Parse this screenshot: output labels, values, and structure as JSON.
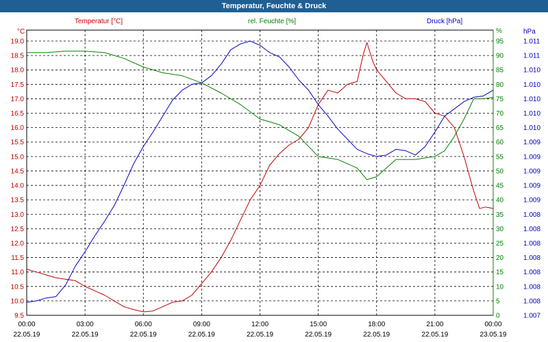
{
  "window": {
    "title": "Temperatur, Feuchte & Druck"
  },
  "chart_data": {
    "type": "line",
    "title": "Temperatur, Feuchte & Druck",
    "legend": {
      "temperature": "Temperatur [°C]",
      "humidity": "rel. Feuchte [%]",
      "pressure": "Druck [hPa]"
    },
    "colors": {
      "temperature": "#c00000",
      "humidity": "#008000",
      "pressure": "#0000c0",
      "grid": "#000000",
      "title_bar": "#1f5f93"
    },
    "axes": {
      "left": {
        "unit": "°C",
        "min": 9.5,
        "max": 19.0,
        "ticks": [
          "9.5",
          "10.0",
          "10.5",
          "11.0",
          "11.5",
          "12.0",
          "12.5",
          "13.0",
          "13.5",
          "14.0",
          "14.5",
          "15.0",
          "15.5",
          "16.0",
          "16.5",
          "17.0",
          "17.5",
          "18.0",
          "18.5",
          "19.0"
        ]
      },
      "right1": {
        "unit": "%",
        "min": 0,
        "max": 95,
        "ticks": [
          "0",
          "5",
          "10",
          "15",
          "20",
          "25",
          "30",
          "35",
          "40",
          "45",
          "50",
          "55",
          "60",
          "65",
          "70",
          "75",
          "80",
          "85",
          "90",
          "95"
        ]
      },
      "right2": {
        "unit": "hPa",
        "ticks": [
          "1.007",
          "1.008",
          "1.008",
          "1.008",
          "1.008",
          "1.008",
          "1.008",
          "1.008",
          "1.009",
          "1.009",
          "1.009",
          "1.009",
          "1.009",
          "1.010",
          "1.010",
          "1.010",
          "1.010",
          "1.010",
          "1.011",
          "1.011"
        ]
      },
      "x": {
        "ticks": [
          {
            "time": "00:00",
            "date": "22.05.19"
          },
          {
            "time": "03:00",
            "date": "22.05.19"
          },
          {
            "time": "06:00",
            "date": "22.05.19"
          },
          {
            "time": "09:00",
            "date": "22.05.19"
          },
          {
            "time": "12:00",
            "date": "22.05.19"
          },
          {
            "time": "15:00",
            "date": "22.05.19"
          },
          {
            "time": "18:00",
            "date": "22.05.19"
          },
          {
            "time": "21:00",
            "date": "22.05.19"
          },
          {
            "time": "00:00",
            "date": "23.05.19"
          }
        ],
        "hours_range": [
          0,
          24
        ]
      }
    },
    "series": [
      {
        "name": "Temperatur",
        "axis": "left",
        "color": "#c00000",
        "points": [
          [
            0,
            11.1
          ],
          [
            0.5,
            11.0
          ],
          [
            1,
            10.9
          ],
          [
            1.5,
            10.8
          ],
          [
            2,
            10.75
          ],
          [
            2.5,
            10.7
          ],
          [
            3,
            10.5
          ],
          [
            3.5,
            10.35
          ],
          [
            4,
            10.2
          ],
          [
            4.5,
            10.0
          ],
          [
            5,
            9.8
          ],
          [
            5.5,
            9.7
          ],
          [
            6,
            9.62
          ],
          [
            6.5,
            9.65
          ],
          [
            7,
            9.8
          ],
          [
            7.5,
            9.95
          ],
          [
            8,
            10.0
          ],
          [
            8.5,
            10.2
          ],
          [
            9,
            10.6
          ],
          [
            9.5,
            11.0
          ],
          [
            10,
            11.5
          ],
          [
            10.5,
            12.1
          ],
          [
            11,
            12.8
          ],
          [
            11.5,
            13.5
          ],
          [
            12,
            14.0
          ],
          [
            12.5,
            14.7
          ],
          [
            13,
            15.1
          ],
          [
            13.5,
            15.4
          ],
          [
            14,
            15.6
          ],
          [
            14.5,
            16.0
          ],
          [
            15,
            16.8
          ],
          [
            15.5,
            17.3
          ],
          [
            16,
            17.2
          ],
          [
            16.5,
            17.5
          ],
          [
            17,
            17.6
          ],
          [
            17.3,
            18.5
          ],
          [
            17.5,
            18.95
          ],
          [
            17.8,
            18.3
          ],
          [
            18,
            18.0
          ],
          [
            18.5,
            17.6
          ],
          [
            19,
            17.2
          ],
          [
            19.5,
            17.0
          ],
          [
            20,
            17.0
          ],
          [
            20.5,
            16.9
          ],
          [
            21,
            16.5
          ],
          [
            21.5,
            16.4
          ],
          [
            22,
            16.0
          ],
          [
            22.5,
            15.0
          ],
          [
            23,
            13.8
          ],
          [
            23.3,
            13.2
          ],
          [
            23.6,
            13.25
          ],
          [
            24,
            13.2
          ]
        ]
      },
      {
        "name": "rel. Feuchte",
        "axis": "right1",
        "color": "#008000",
        "points": [
          [
            0,
            91
          ],
          [
            1,
            91
          ],
          [
            2,
            91.5
          ],
          [
            3,
            91.5
          ],
          [
            4,
            91
          ],
          [
            5,
            89
          ],
          [
            6,
            86
          ],
          [
            7,
            84
          ],
          [
            8,
            83
          ],
          [
            9,
            80.5
          ],
          [
            10,
            77
          ],
          [
            11,
            73
          ],
          [
            12,
            68
          ],
          [
            13,
            66
          ],
          [
            14,
            62
          ],
          [
            15,
            55
          ],
          [
            16,
            54
          ],
          [
            17,
            51
          ],
          [
            17.5,
            47
          ],
          [
            18,
            48
          ],
          [
            18.5,
            51
          ],
          [
            19,
            54
          ],
          [
            20,
            54
          ],
          [
            21,
            55
          ],
          [
            21.5,
            57
          ],
          [
            22,
            62
          ],
          [
            22.5,
            68
          ],
          [
            23,
            75
          ],
          [
            23.5,
            75
          ],
          [
            24,
            75.5
          ]
        ]
      },
      {
        "name": "Druck",
        "axis": "right1",
        "color": "#0000c0",
        "points": [
          [
            0,
            4.5
          ],
          [
            0.5,
            5.0
          ],
          [
            1,
            6.0
          ],
          [
            1.5,
            6.5
          ],
          [
            2,
            10.5
          ],
          [
            2.5,
            17.0
          ],
          [
            3,
            22.0
          ],
          [
            3.5,
            27.5
          ],
          [
            4,
            32.5
          ],
          [
            4.5,
            38.0
          ],
          [
            5,
            45.0
          ],
          [
            5.5,
            52.5
          ],
          [
            6,
            58.5
          ],
          [
            6.5,
            63.5
          ],
          [
            7,
            69.0
          ],
          [
            7.5,
            74.5
          ],
          [
            8,
            78.0
          ],
          [
            8.5,
            80.0
          ],
          [
            9,
            80.5
          ],
          [
            9.5,
            83.0
          ],
          [
            10,
            87.0
          ],
          [
            10.5,
            92.0
          ],
          [
            11,
            94.0
          ],
          [
            11.5,
            95.0
          ],
          [
            12,
            93.5
          ],
          [
            12.5,
            91.0
          ],
          [
            13,
            89.5
          ],
          [
            13.5,
            86.0
          ],
          [
            14,
            81.5
          ],
          [
            14.5,
            78.0
          ],
          [
            15,
            73.0
          ],
          [
            15.5,
            69.0
          ],
          [
            16,
            64.5
          ],
          [
            16.5,
            61.0
          ],
          [
            17,
            57.5
          ],
          [
            17.5,
            56.0
          ],
          [
            18,
            55.0
          ],
          [
            18.5,
            55.5
          ],
          [
            19,
            57.5
          ],
          [
            19.5,
            57.0
          ],
          [
            20,
            55.5
          ],
          [
            20.5,
            58.5
          ],
          [
            21,
            63.5
          ],
          [
            21.5,
            69.0
          ],
          [
            22,
            71.5
          ],
          [
            22.5,
            74.0
          ],
          [
            23,
            75.5
          ],
          [
            23.5,
            76.0
          ],
          [
            24,
            78.0
          ]
        ]
      }
    ]
  }
}
